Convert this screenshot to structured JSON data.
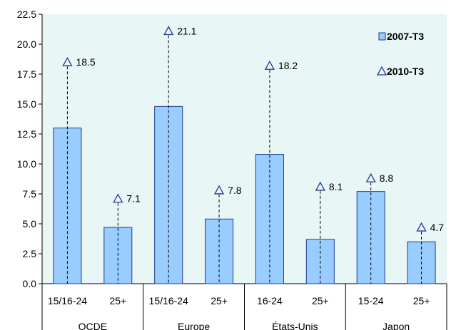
{
  "chart_data": {
    "type": "bar",
    "title": "",
    "xlabel": "",
    "ylabel": "",
    "ylim": [
      0,
      22.5
    ],
    "yticks": [
      "0.0",
      "2.5",
      "5.0",
      "7.5",
      "10.0",
      "12.5",
      "15.0",
      "17.5",
      "20.0",
      "22.5"
    ],
    "grid": false,
    "legend_position": "top-right",
    "categories": [
      "15/16-24",
      "25+",
      "15/16-24",
      "25+",
      "16-24",
      "25+",
      "15-24",
      "25+"
    ],
    "groups": [
      {
        "label": "OCDE",
        "categories": [
          0,
          1
        ]
      },
      {
        "label": "Europe",
        "categories": [
          2,
          3
        ]
      },
      {
        "label": "États-Unis",
        "categories": [
          4,
          5
        ]
      },
      {
        "label": "Japon",
        "categories": [
          6,
          7
        ]
      }
    ],
    "series": [
      {
        "name": "2007-T3",
        "kind": "bar",
        "values": [
          13.0,
          4.7,
          14.8,
          5.4,
          10.8,
          3.7,
          7.7,
          3.5
        ]
      },
      {
        "name": "2010-T3",
        "kind": "marker",
        "marker": "triangle-hollow",
        "values": [
          18.5,
          7.1,
          21.1,
          7.8,
          18.2,
          8.1,
          8.8,
          4.7
        ]
      }
    ],
    "data_labels": [
      "18.5",
      "7.1",
      "21.1",
      "7.8",
      "18.2",
      "8.1",
      "8.8",
      "4.7"
    ],
    "colors": {
      "plot_background": "#e8f6f6",
      "bar_fill": "#99ccff",
      "bar_stroke": "#1f3a93",
      "marker_stroke": "#1f3a93",
      "axis": "#000000"
    }
  }
}
